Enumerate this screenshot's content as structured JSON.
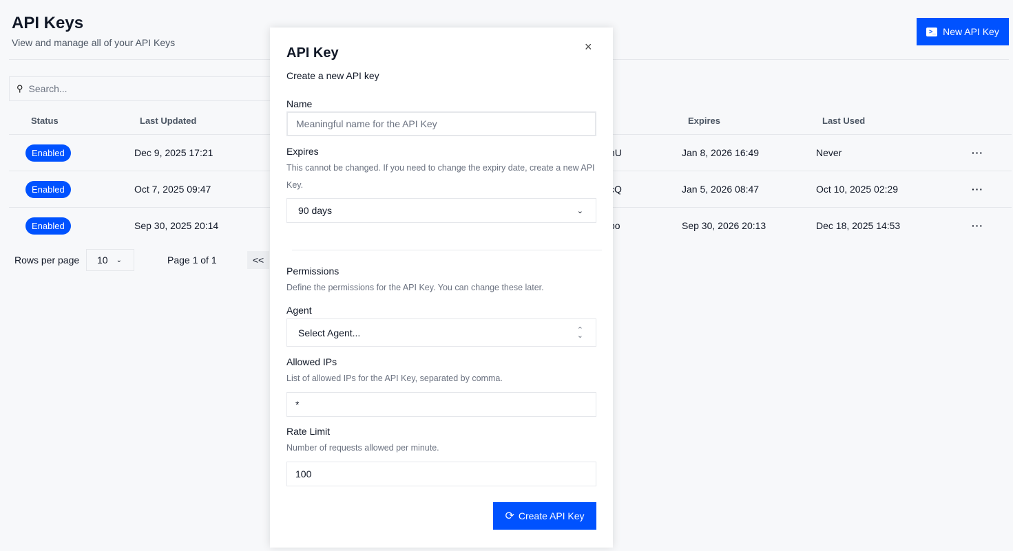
{
  "page": {
    "title": "API Keys",
    "subtitle": "View and manage all of your API Keys",
    "new_button": "New API Key",
    "search_placeholder": "Search..."
  },
  "table": {
    "headers": [
      "Status",
      "Last Updated",
      "Expires",
      "Last Used"
    ],
    "rows": [
      {
        "status": "Enabled",
        "updated": "Dec 9, 2025 17:21",
        "key_fragment": "nU",
        "expires": "Jan 8, 2026 16:49",
        "last_used": "Never"
      },
      {
        "status": "Enabled",
        "updated": "Oct 7, 2025 09:47",
        "key_fragment": "cQ",
        "expires": "Jan 5, 2026 08:47",
        "last_used": "Oct 10, 2025 02:29"
      },
      {
        "status": "Enabled",
        "updated": "Sep 30, 2025 20:14",
        "key_fragment": "oo",
        "expires": "Sep 30, 2026 20:13",
        "last_used": "Dec 18, 2025 14:53"
      }
    ]
  },
  "pagination": {
    "rows_label": "Rows per page",
    "rows_value": "10",
    "page_text": "Page 1 of 1",
    "first_label": "<<"
  },
  "modal": {
    "title": "API Key",
    "subtitle": "Create a new API key",
    "name_label": "Name",
    "name_placeholder": "Meaningful name for the API Key",
    "expires_label": "Expires",
    "expires_hint": "This cannot be changed. If you need to change the expiry date, create a new API Key.",
    "expires_value": "90 days",
    "permissions_label": "Permissions",
    "permissions_hint": "Define the permissions for the API Key. You can change these later.",
    "agent_label": "Agent",
    "agent_placeholder": "Select Agent...",
    "ips_label": "Allowed IPs",
    "ips_hint": "List of allowed IPs for the API Key, separated by comma.",
    "ips_value": "*",
    "rate_label": "Rate Limit",
    "rate_hint": "Number of requests allowed per minute.",
    "rate_value": "100",
    "create_button": "Create API Key"
  },
  "colors": {
    "accent": "#0052ff",
    "background": "#f7f8fa"
  }
}
